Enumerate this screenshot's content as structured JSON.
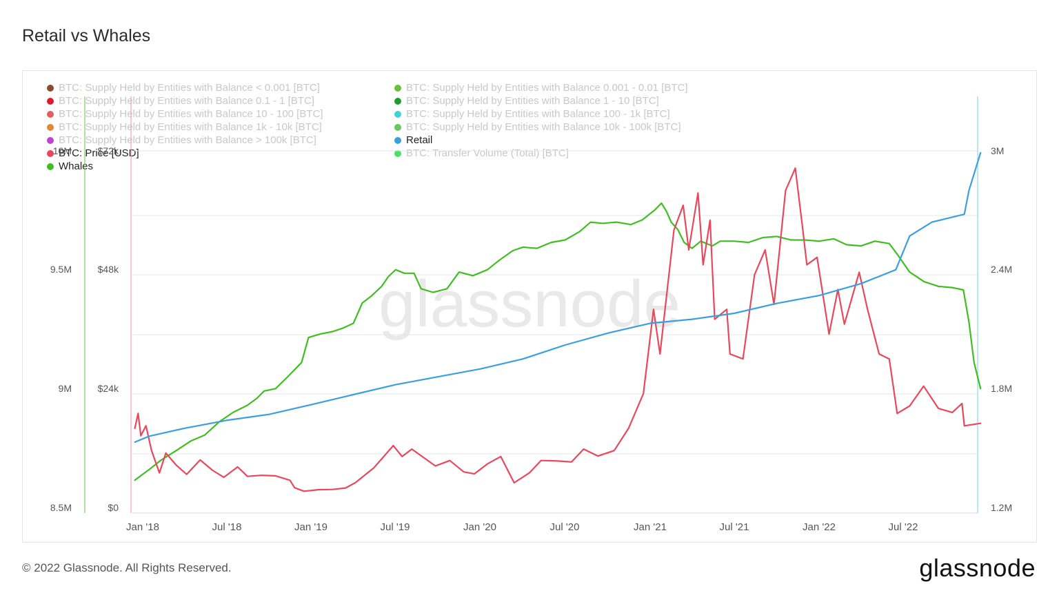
{
  "title": "Retail vs Whales",
  "footer": "© 2022 Glassnode. All Rights Reserved.",
  "logo": "glassnode",
  "watermark": "glassnode",
  "legend": [
    {
      "label": "BTC: Supply Held by Entities with Balance < 0.001 [BTC]",
      "color": "#8a4a2f",
      "active": false
    },
    {
      "label": "BTC: Supply Held by Entities with Balance 0.001 - 0.01 [BTC]",
      "color": "#6abf3a",
      "active": false
    },
    {
      "label": "BTC: Supply Held by Entities with Balance 0.1 - 1 [BTC]",
      "color": "#e0192b",
      "active": false
    },
    {
      "label": "BTC: Supply Held by Entities with Balance 1 - 10 [BTC]",
      "color": "#1f9a2e",
      "active": false
    },
    {
      "label": "BTC: Supply Held by Entities with Balance 10 - 100 [BTC]",
      "color": "#e06060",
      "active": false
    },
    {
      "label": "BTC: Supply Held by Entities with Balance 100 - 1k [BTC]",
      "color": "#3fd3d8",
      "active": false
    },
    {
      "label": "BTC: Supply Held by Entities with Balance 1k - 10k [BTC]",
      "color": "#e08a35",
      "active": false
    },
    {
      "label": "BTC: Supply Held by Entities with Balance 10k - 100k [BTC]",
      "color": "#62c95a",
      "active": false
    },
    {
      "label": "BTC: Supply Held by Entities with Balance > 100k [BTC]",
      "color": "#c43fd8",
      "active": false
    },
    {
      "label": "Retail",
      "color": "#3a9fe0",
      "active": true
    },
    {
      "label": "BTC: Price [USD]",
      "color": "#e8475c",
      "active": true
    },
    {
      "label": "BTC: Transfer Volume (Total) [BTC]",
      "color": "#49e06a",
      "active": false
    },
    {
      "label": "Whales",
      "color": "#3fbf1f",
      "active": true
    }
  ],
  "chart_data": {
    "type": "line",
    "x_ticks": [
      "Jan '18",
      "Jul '18",
      "Jan '19",
      "Jul '19",
      "Jan '20",
      "Jul '20",
      "Jan '21",
      "Jul '21",
      "Jan '22",
      "Jul '22"
    ],
    "axes": {
      "left_whales": {
        "ticks": [
          "8.5M",
          "9M",
          "9.5M",
          "10M"
        ],
        "range": [
          8500000,
          10000000
        ]
      },
      "left_price": {
        "ticks": [
          "$0",
          "$24k",
          "$48k",
          "$72k"
        ],
        "range": [
          0,
          72000
        ]
      },
      "right_retail": {
        "ticks": [
          "1.2M",
          "1.8M",
          "2.4M",
          "3M"
        ],
        "range": [
          1200000,
          3000000
        ]
      }
    },
    "series": [
      {
        "name": "Whales",
        "color": "#3fbf1f",
        "axis": "left_whales",
        "points": [
          [
            "2017-12-15",
            8615000
          ],
          [
            "2018-01-15",
            8660000
          ],
          [
            "2018-02-10",
            8700000
          ],
          [
            "2018-03-15",
            8740000
          ],
          [
            "2018-04-15",
            8780000
          ],
          [
            "2018-05-15",
            8805000
          ],
          [
            "2018-06-15",
            8860000
          ],
          [
            "2018-07-15",
            8900000
          ],
          [
            "2018-08-15",
            8930000
          ],
          [
            "2018-09-05",
            8960000
          ],
          [
            "2018-09-20",
            8990000
          ],
          [
            "2018-10-15",
            9000000
          ],
          [
            "2018-11-10",
            9050000
          ],
          [
            "2018-12-10",
            9110000
          ],
          [
            "2018-12-25",
            9215000
          ],
          [
            "2019-01-20",
            9230000
          ],
          [
            "2019-02-15",
            9240000
          ],
          [
            "2019-03-10",
            9255000
          ],
          [
            "2019-04-01",
            9275000
          ],
          [
            "2019-04-20",
            9360000
          ],
          [
            "2019-05-10",
            9390000
          ],
          [
            "2019-06-01",
            9430000
          ],
          [
            "2019-06-15",
            9470000
          ],
          [
            "2019-07-01",
            9500000
          ],
          [
            "2019-07-20",
            9485000
          ],
          [
            "2019-08-10",
            9485000
          ],
          [
            "2019-08-25",
            9420000
          ],
          [
            "2019-09-20",
            9405000
          ],
          [
            "2019-10-20",
            9420000
          ],
          [
            "2019-11-15",
            9490000
          ],
          [
            "2019-12-15",
            9475000
          ],
          [
            "2020-01-15",
            9500000
          ],
          [
            "2020-02-10",
            9540000
          ],
          [
            "2020-03-10",
            9580000
          ],
          [
            "2020-04-01",
            9595000
          ],
          [
            "2020-05-01",
            9590000
          ],
          [
            "2020-06-01",
            9615000
          ],
          [
            "2020-07-01",
            9625000
          ],
          [
            "2020-08-01",
            9660000
          ],
          [
            "2020-08-25",
            9700000
          ],
          [
            "2020-09-20",
            9695000
          ],
          [
            "2020-10-20",
            9700000
          ],
          [
            "2020-11-20",
            9690000
          ],
          [
            "2020-12-15",
            9710000
          ],
          [
            "2021-01-10",
            9750000
          ],
          [
            "2021-01-25",
            9780000
          ],
          [
            "2021-02-05",
            9745000
          ],
          [
            "2021-02-15",
            9700000
          ],
          [
            "2021-03-01",
            9670000
          ],
          [
            "2021-03-15",
            9615000
          ],
          [
            "2021-04-01",
            9590000
          ],
          [
            "2021-04-20",
            9620000
          ],
          [
            "2021-05-15",
            9600000
          ],
          [
            "2021-06-01",
            9620000
          ],
          [
            "2021-07-01",
            9620000
          ],
          [
            "2021-08-01",
            9615000
          ],
          [
            "2021-09-01",
            9635000
          ],
          [
            "2021-10-01",
            9640000
          ],
          [
            "2021-11-01",
            9625000
          ],
          [
            "2021-12-01",
            9625000
          ],
          [
            "2022-01-01",
            9620000
          ],
          [
            "2022-02-01",
            9630000
          ],
          [
            "2022-03-01",
            9605000
          ],
          [
            "2022-04-01",
            9600000
          ],
          [
            "2022-05-01",
            9620000
          ],
          [
            "2022-06-01",
            9610000
          ],
          [
            "2022-06-20",
            9560000
          ],
          [
            "2022-07-15",
            9490000
          ],
          [
            "2022-08-15",
            9450000
          ],
          [
            "2022-09-15",
            9430000
          ],
          [
            "2022-10-15",
            9425000
          ],
          [
            "2022-11-08",
            9415000
          ],
          [
            "2022-11-20",
            9280000
          ],
          [
            "2022-12-01",
            9110000
          ],
          [
            "2022-12-15",
            9000000
          ]
        ]
      },
      {
        "name": "BTC: Price [USD]",
        "color": "#e8475c",
        "axis": "left_price",
        "points": [
          [
            "2017-12-15",
            16000
          ],
          [
            "2017-12-22",
            19000
          ],
          [
            "2017-12-28",
            14500
          ],
          [
            "2018-01-08",
            16500
          ],
          [
            "2018-01-20",
            11500
          ],
          [
            "2018-02-06",
            7000
          ],
          [
            "2018-02-20",
            11000
          ],
          [
            "2018-03-15",
            8500
          ],
          [
            "2018-04-06",
            6700
          ],
          [
            "2018-05-05",
            9600
          ],
          [
            "2018-06-01",
            7500
          ],
          [
            "2018-06-25",
            6100
          ],
          [
            "2018-07-25",
            8200
          ],
          [
            "2018-08-15",
            6300
          ],
          [
            "2018-09-15",
            6500
          ],
          [
            "2018-10-15",
            6400
          ],
          [
            "2018-11-15",
            5500
          ],
          [
            "2018-11-25",
            4000
          ],
          [
            "2018-12-15",
            3300
          ],
          [
            "2019-01-15",
            3600
          ],
          [
            "2019-02-15",
            3650
          ],
          [
            "2019-03-15",
            3950
          ],
          [
            "2019-04-05",
            5000
          ],
          [
            "2019-05-15",
            8000
          ],
          [
            "2019-06-26",
            12500
          ],
          [
            "2019-07-15",
            10300
          ],
          [
            "2019-08-05",
            11800
          ],
          [
            "2019-09-25",
            8400
          ],
          [
            "2019-10-26",
            9500
          ],
          [
            "2019-11-25",
            7200
          ],
          [
            "2019-12-18",
            6800
          ],
          [
            "2020-01-15",
            8800
          ],
          [
            "2020-02-13",
            10300
          ],
          [
            "2020-03-13",
            5000
          ],
          [
            "2020-04-15",
            7000
          ],
          [
            "2020-05-10",
            9500
          ],
          [
            "2020-06-15",
            9400
          ],
          [
            "2020-07-15",
            9200
          ],
          [
            "2020-08-10",
            11800
          ],
          [
            "2020-09-10",
            10400
          ],
          [
            "2020-10-15",
            11500
          ],
          [
            "2020-11-15",
            16000
          ],
          [
            "2020-12-17",
            23000
          ],
          [
            "2021-01-08",
            40000
          ],
          [
            "2021-01-22",
            31000
          ],
          [
            "2021-02-21",
            56000
          ],
          [
            "2021-03-13",
            61000
          ],
          [
            "2021-03-25",
            52000
          ],
          [
            "2021-04-14",
            63500
          ],
          [
            "2021-04-25",
            49000
          ],
          [
            "2021-05-10",
            58000
          ],
          [
            "2021-05-20",
            38000
          ],
          [
            "2021-06-15",
            40000
          ],
          [
            "2021-06-22",
            31000
          ],
          [
            "2021-07-20",
            30000
          ],
          [
            "2021-08-14",
            47000
          ],
          [
            "2021-09-06",
            52000
          ],
          [
            "2021-09-25",
            41000
          ],
          [
            "2021-10-20",
            64000
          ],
          [
            "2021-11-10",
            68500
          ],
          [
            "2021-11-25",
            57000
          ],
          [
            "2021-12-05",
            49000
          ],
          [
            "2021-12-27",
            50500
          ],
          [
            "2022-01-22",
            35000
          ],
          [
            "2022-02-10",
            44000
          ],
          [
            "2022-02-24",
            37000
          ],
          [
            "2022-03-28",
            47500
          ],
          [
            "2022-04-15",
            40000
          ],
          [
            "2022-05-10",
            31000
          ],
          [
            "2022-06-01",
            30000
          ],
          [
            "2022-06-18",
            19000
          ],
          [
            "2022-07-15",
            20500
          ],
          [
            "2022-08-14",
            24500
          ],
          [
            "2022-09-15",
            20000
          ],
          [
            "2022-10-15",
            19200
          ],
          [
            "2022-11-05",
            21000
          ],
          [
            "2022-11-10",
            16500
          ],
          [
            "2022-12-15",
            17000
          ]
        ]
      },
      {
        "name": "Retail",
        "color": "#3a9fe0",
        "axis": "right_retail",
        "points": [
          [
            "2017-12-15",
            1530000
          ],
          [
            "2018-01-15",
            1560000
          ],
          [
            "2018-04-01",
            1600000
          ],
          [
            "2018-07-01",
            1640000
          ],
          [
            "2018-10-01",
            1670000
          ],
          [
            "2019-01-01",
            1720000
          ],
          [
            "2019-04-01",
            1770000
          ],
          [
            "2019-07-01",
            1820000
          ],
          [
            "2019-10-01",
            1860000
          ],
          [
            "2020-01-01",
            1900000
          ],
          [
            "2020-04-01",
            1950000
          ],
          [
            "2020-07-01",
            2020000
          ],
          [
            "2020-10-01",
            2080000
          ],
          [
            "2021-01-01",
            2130000
          ],
          [
            "2021-04-01",
            2150000
          ],
          [
            "2021-07-01",
            2180000
          ],
          [
            "2021-10-01",
            2230000
          ],
          [
            "2022-01-01",
            2270000
          ],
          [
            "2022-04-01",
            2330000
          ],
          [
            "2022-06-15",
            2400000
          ],
          [
            "2022-07-15",
            2570000
          ],
          [
            "2022-09-01",
            2640000
          ],
          [
            "2022-11-10",
            2680000
          ],
          [
            "2022-11-20",
            2800000
          ],
          [
            "2022-12-15",
            2990000
          ]
        ]
      }
    ]
  }
}
